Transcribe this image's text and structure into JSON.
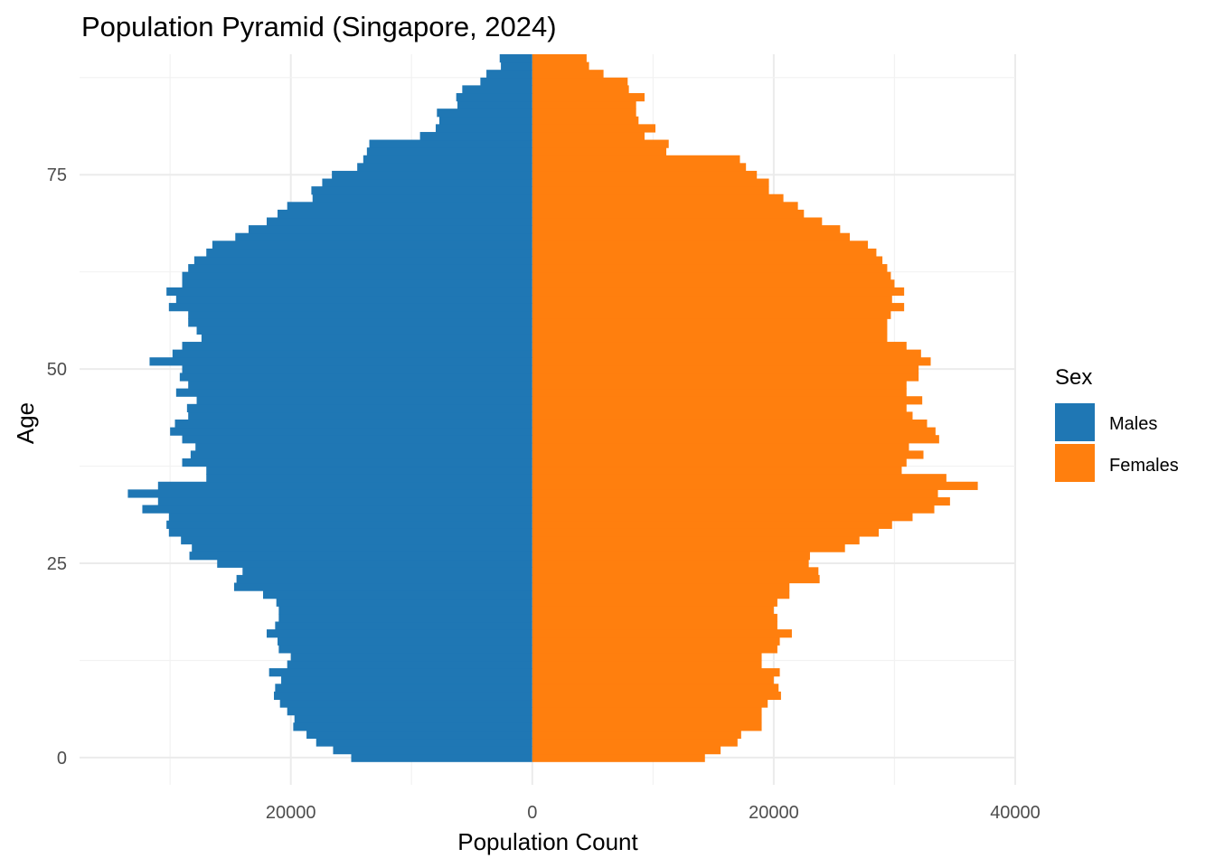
{
  "chart_data": {
    "type": "bar",
    "orientation": "horizontal-pyramid",
    "title": "Population Pyramid (Singapore, 2024)",
    "xlabel": "Population Count",
    "ylabel": "Age",
    "x_ticks": [
      -20000,
      0,
      20000,
      40000
    ],
    "x_tick_labels": [
      "20000",
      "0",
      "20000",
      "40000"
    ],
    "y_ticks": [
      0,
      25,
      50,
      75
    ],
    "y_tick_labels": [
      "0",
      "25",
      "50",
      "75"
    ],
    "xlim": [
      -37500,
      40000
    ],
    "ylim": [
      -3.5,
      90.5
    ],
    "grid": true,
    "legend": {
      "title": "Sex",
      "position": "right"
    },
    "ages": [
      0,
      1,
      2,
      3,
      4,
      5,
      6,
      7,
      8,
      9,
      10,
      11,
      12,
      13,
      14,
      15,
      16,
      17,
      18,
      19,
      20,
      21,
      22,
      23,
      24,
      25,
      26,
      27,
      28,
      29,
      30,
      31,
      32,
      33,
      34,
      35,
      36,
      37,
      38,
      39,
      40,
      41,
      42,
      43,
      44,
      45,
      46,
      47,
      48,
      49,
      50,
      51,
      52,
      53,
      54,
      55,
      56,
      57,
      58,
      59,
      60,
      61,
      62,
      63,
      64,
      65,
      66,
      67,
      68,
      69,
      70,
      71,
      72,
      73,
      74,
      75,
      76,
      77,
      78,
      79,
      80,
      81,
      82,
      83,
      84,
      85,
      86,
      87,
      88,
      89,
      90
    ],
    "series": [
      {
        "name": "Males",
        "color": "#1f77b4",
        "values": [
          15000,
          16500,
          17900,
          18700,
          19800,
          19700,
          20300,
          20900,
          21400,
          21300,
          20800,
          21800,
          20300,
          20000,
          21000,
          21100,
          22000,
          21300,
          21000,
          21000,
          21200,
          22300,
          24700,
          24500,
          24000,
          26100,
          28400,
          28200,
          29100,
          30100,
          30300,
          30100,
          32300,
          31000,
          33500,
          31000,
          27000,
          27000,
          29000,
          28300,
          27900,
          29000,
          30000,
          29600,
          28500,
          28600,
          27800,
          29500,
          28500,
          29200,
          29000,
          31700,
          29800,
          29000,
          27400,
          27800,
          28500,
          28500,
          30100,
          29500,
          30300,
          29000,
          29000,
          28500,
          28000,
          27000,
          26500,
          24600,
          23500,
          22000,
          21100,
          20300,
          18200,
          18300,
          17400,
          16600,
          14500,
          14000,
          13700,
          13500,
          9300,
          8000,
          7700,
          7900,
          6200,
          6300,
          5800,
          4300,
          3800,
          2600,
          2700
        ],
        "labels_note": ""
      },
      {
        "name": "Females",
        "color": "#ff7f0e",
        "values": [
          14300,
          15600,
          17000,
          17300,
          19000,
          19000,
          19000,
          19500,
          20600,
          20400,
          20000,
          20500,
          19000,
          19000,
          20300,
          20500,
          21500,
          20300,
          20300,
          20000,
          20300,
          21300,
          21300,
          23800,
          23700,
          22900,
          23000,
          25900,
          27100,
          28700,
          29800,
          31500,
          33300,
          34600,
          33600,
          36900,
          34300,
          30600,
          31000,
          32400,
          31200,
          33700,
          33400,
          32700,
          31500,
          31000,
          32300,
          31000,
          31000,
          32000,
          32000,
          33000,
          32200,
          31000,
          29400,
          29400,
          29400,
          29700,
          30800,
          29800,
          30800,
          30000,
          29700,
          29400,
          29000,
          28500,
          27800,
          26300,
          25500,
          24000,
          22500,
          22000,
          20800,
          19600,
          19600,
          18600,
          17700,
          17200,
          11100,
          11300,
          9300,
          10200,
          8800,
          8600,
          8600,
          9300,
          8000,
          7900,
          5900,
          4700,
          4500
        ]
      }
    ]
  }
}
